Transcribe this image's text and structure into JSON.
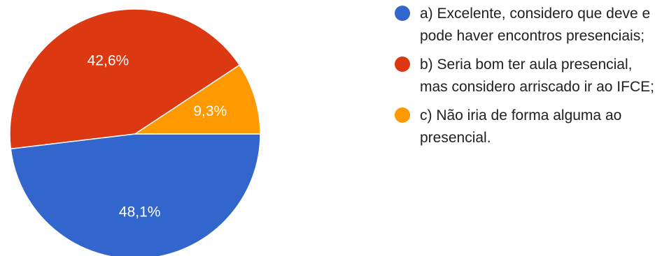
{
  "chart_data": {
    "type": "pie",
    "title": "",
    "slices": [
      {
        "label": "a) Excelente, considero que deve e pode haver encontros presenciais;",
        "value": 48.1,
        "display": "48,1%",
        "color": "#3366cc"
      },
      {
        "label": "b) Seria bom ter aula presencial, mas considero arriscado ir ao IFCE;",
        "value": 42.6,
        "display": "42,6%",
        "color": "#dc3912"
      },
      {
        "label": "c) Não iria de forma alguma ao presencial.",
        "value": 9.3,
        "display": "9,3%",
        "color": "#ff9900"
      }
    ],
    "legend_position": "right"
  }
}
